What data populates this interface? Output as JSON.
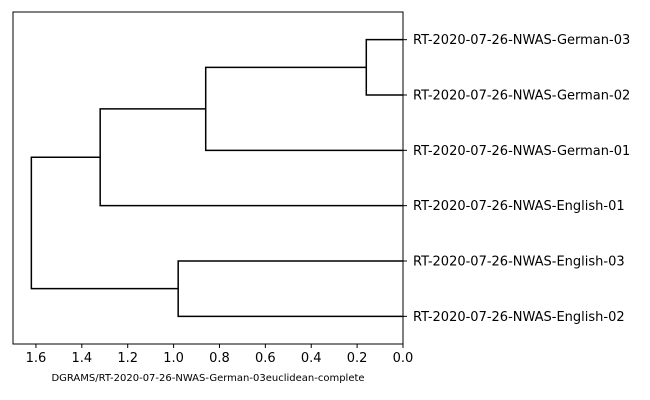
{
  "chart_data": {
    "type": "dendrogram",
    "orientation": "left",
    "xlabel": "DGRAMS/RT-2020-07-26-NWAS-German-03euclidean-complete",
    "xlim": [
      1.7,
      0.0
    ],
    "xticks": [
      1.6,
      1.4,
      1.2,
      1.0,
      0.8,
      0.6,
      0.4,
      0.2,
      0.0
    ],
    "xtick_labels": [
      "1.6",
      "1.4",
      "1.2",
      "1.0",
      "0.8",
      "0.6",
      "0.4",
      "0.2",
      "0.0"
    ],
    "leaves": [
      "RT-2020-07-26-NWAS-German-03",
      "RT-2020-07-26-NWAS-German-02",
      "RT-2020-07-26-NWAS-German-01",
      "RT-2020-07-26-NWAS-English-01",
      "RT-2020-07-26-NWAS-English-03",
      "RT-2020-07-26-NWAS-English-02"
    ],
    "merges": [
      {
        "left": "leaf:0",
        "right": "leaf:1",
        "height": 0.16
      },
      {
        "left": "merge:0",
        "right": "leaf:2",
        "height": 0.86
      },
      {
        "left": "merge:1",
        "right": "leaf:3",
        "height": 1.32
      },
      {
        "left": "leaf:4",
        "right": "leaf:5",
        "height": 0.98
      },
      {
        "left": "merge:2",
        "right": "merge:3",
        "height": 1.62
      }
    ],
    "line_color": "#000000"
  }
}
